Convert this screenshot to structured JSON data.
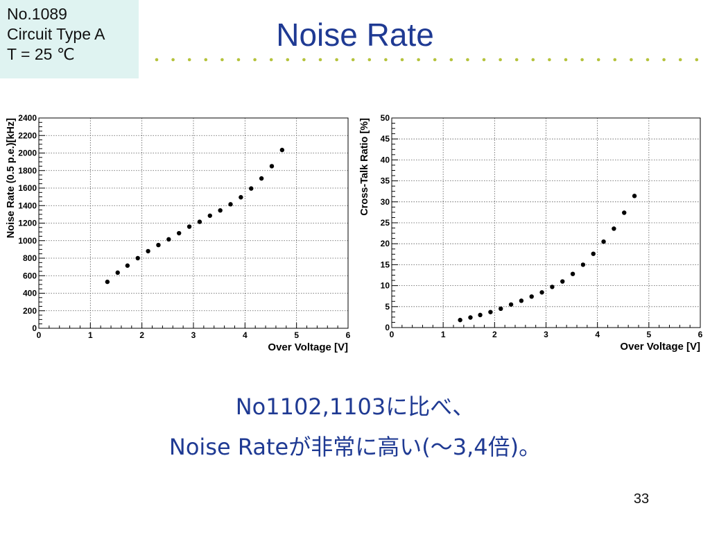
{
  "info": {
    "line1": "No.1089",
    "line2": "Circuit Type A",
    "line3": "T = 25 ℃"
  },
  "title": "Noise Rate",
  "colors": {
    "title": "#1f3a93",
    "dots": "#b5c33d",
    "info_bg": "#dff3f1"
  },
  "comment": {
    "line1": "No1102,1103に比べ、",
    "line2": "Noise Rateが非常に高い(～3,4倍)。"
  },
  "page_number": "33",
  "chart_data": [
    {
      "type": "scatter",
      "title": "",
      "xlabel": "Over Voltage [V]",
      "ylabel": "Noise Rate (0.5 p.e.)[kHz]",
      "xlim": [
        0,
        6
      ],
      "ylim": [
        0,
        2400
      ],
      "xticks": [
        0,
        1,
        2,
        3,
        4,
        5,
        6
      ],
      "yticks": [
        0,
        200,
        400,
        600,
        800,
        1000,
        1200,
        1400,
        1600,
        1800,
        2000,
        2200,
        2400
      ],
      "grid": true,
      "series": [
        {
          "x": [
            1.33,
            1.53,
            1.72,
            1.92,
            2.12,
            2.32,
            2.52,
            2.72,
            2.92,
            3.12,
            3.32,
            3.52,
            3.72,
            3.92,
            4.12,
            4.32,
            4.52,
            4.72
          ],
          "y": [
            530,
            635,
            715,
            800,
            880,
            950,
            1015,
            1085,
            1160,
            1215,
            1285,
            1345,
            1415,
            1495,
            1595,
            1710,
            1850,
            2035
          ]
        }
      ]
    },
    {
      "type": "scatter",
      "title": "",
      "xlabel": "Over Voltage [V]",
      "ylabel": "Cross-Talk  Ratio [%]",
      "xlim": [
        0,
        6
      ],
      "ylim": [
        0,
        50
      ],
      "xticks": [
        0,
        1,
        2,
        3,
        4,
        5,
        6
      ],
      "yticks": [
        0,
        5,
        10,
        15,
        20,
        25,
        30,
        35,
        40,
        45,
        50
      ],
      "grid": true,
      "series": [
        {
          "x": [
            1.33,
            1.53,
            1.72,
            1.92,
            2.12,
            2.32,
            2.52,
            2.72,
            2.92,
            3.12,
            3.32,
            3.52,
            3.72,
            3.92,
            4.12,
            4.32,
            4.52,
            4.72
          ],
          "y": [
            1.8,
            2.4,
            3.0,
            3.7,
            4.5,
            5.5,
            6.4,
            7.4,
            8.4,
            9.7,
            11.0,
            12.8,
            15.0,
            17.6,
            20.5,
            23.6,
            27.4,
            31.4
          ]
        }
      ]
    }
  ]
}
